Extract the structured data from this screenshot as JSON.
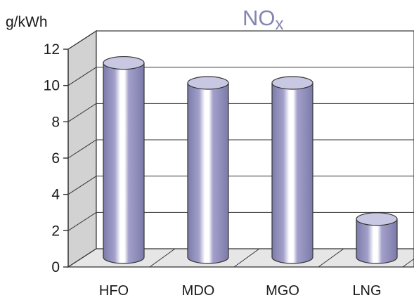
{
  "chart_data": {
    "type": "bar",
    "style": "3d-cylinder",
    "title_main": "NO",
    "title_sub": "x",
    "ylabel": "g/kWh",
    "categories": [
      "HFO",
      "MDO",
      "MGO",
      "LNG"
    ],
    "values": [
      10.7,
      9.6,
      9.6,
      2.1
    ],
    "ylim": [
      0,
      12
    ],
    "yticks": [
      "0",
      "2",
      "4",
      "6",
      "8",
      "10",
      "12"
    ],
    "grid": true,
    "colors": {
      "bar": "#9d9bc4",
      "bar_dark": "#7e7cab",
      "bar_top": "#c9c8e3",
      "wall": "#d4d4d4",
      "floor": "#e8e8e8",
      "title": "#8585b3"
    }
  }
}
